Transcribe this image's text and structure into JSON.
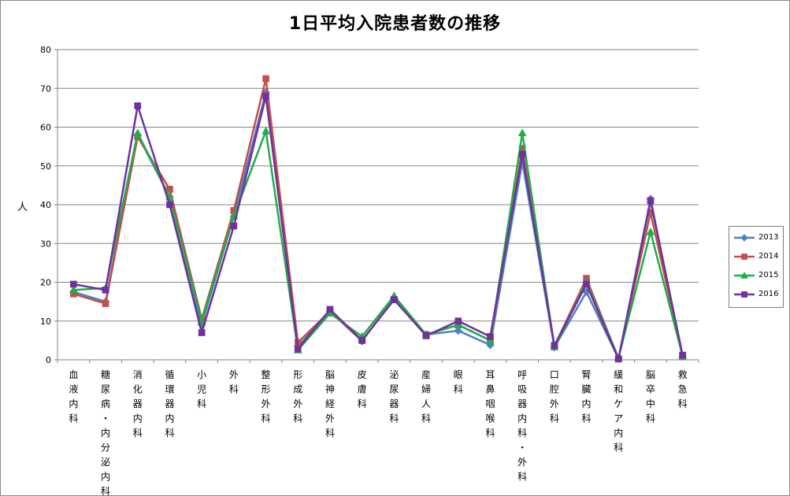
{
  "chart_data": {
    "type": "line",
    "title": "1日平均入院患者数の推移",
    "xlabel": "",
    "ylabel": "人",
    "ylim": [
      0,
      80
    ],
    "yticks": [
      0,
      10,
      20,
      30,
      40,
      50,
      60,
      70,
      80
    ],
    "grid": true,
    "legend_position": "right",
    "categories": [
      "血液内科",
      "糖尿病・内分泌内科",
      "消化器内科",
      "循環器内科",
      "小児科",
      "外科",
      "整形外科",
      "形成外科",
      "脳神経外科",
      "皮膚科",
      "泌尿器科",
      "産婦人科",
      "眼科",
      "耳鼻咽喉科",
      "呼吸器内科・外科",
      "口腔外科",
      "腎臓内科",
      "緩和ケア内科",
      "脳卒中科",
      "救急科"
    ],
    "series": [
      {
        "name": "2013",
        "color": "#4f81bd",
        "marker": "diamond",
        "values": [
          17.5,
          15.0,
          58.0,
          42.0,
          9.0,
          37.0,
          69.0,
          3.5,
          12.5,
          4.8,
          16.0,
          6.5,
          7.5,
          3.8,
          51.0,
          3.2,
          17.5,
          0.3,
          41.5,
          0.8
        ]
      },
      {
        "name": "2014",
        "color": "#c0504d",
        "marker": "square",
        "values": [
          17.0,
          14.5,
          57.5,
          44.0,
          10.5,
          38.5,
          72.5,
          4.5,
          12.5,
          5.0,
          15.5,
          6.5,
          9.0,
          5.0,
          54.5,
          3.5,
          21.0,
          0.3,
          38.0,
          0.8
        ]
      },
      {
        "name": "2015",
        "color": "#1fae47",
        "marker": "triangle",
        "values": [
          18.0,
          18.5,
          58.5,
          42.0,
          10.0,
          37.0,
          59.0,
          2.5,
          12.0,
          6.0,
          16.5,
          6.5,
          9.0,
          5.0,
          58.5,
          3.3,
          20.0,
          0.5,
          33.0,
          1.0
        ]
      },
      {
        "name": "2016",
        "color": "#7030a0",
        "marker": "square",
        "values": [
          19.5,
          18.0,
          65.5,
          40.0,
          7.0,
          34.5,
          68.0,
          2.8,
          13.0,
          5.0,
          15.5,
          6.2,
          10.0,
          6.0,
          53.0,
          3.7,
          19.5,
          0.2,
          41.0,
          1.2
        ]
      }
    ]
  }
}
